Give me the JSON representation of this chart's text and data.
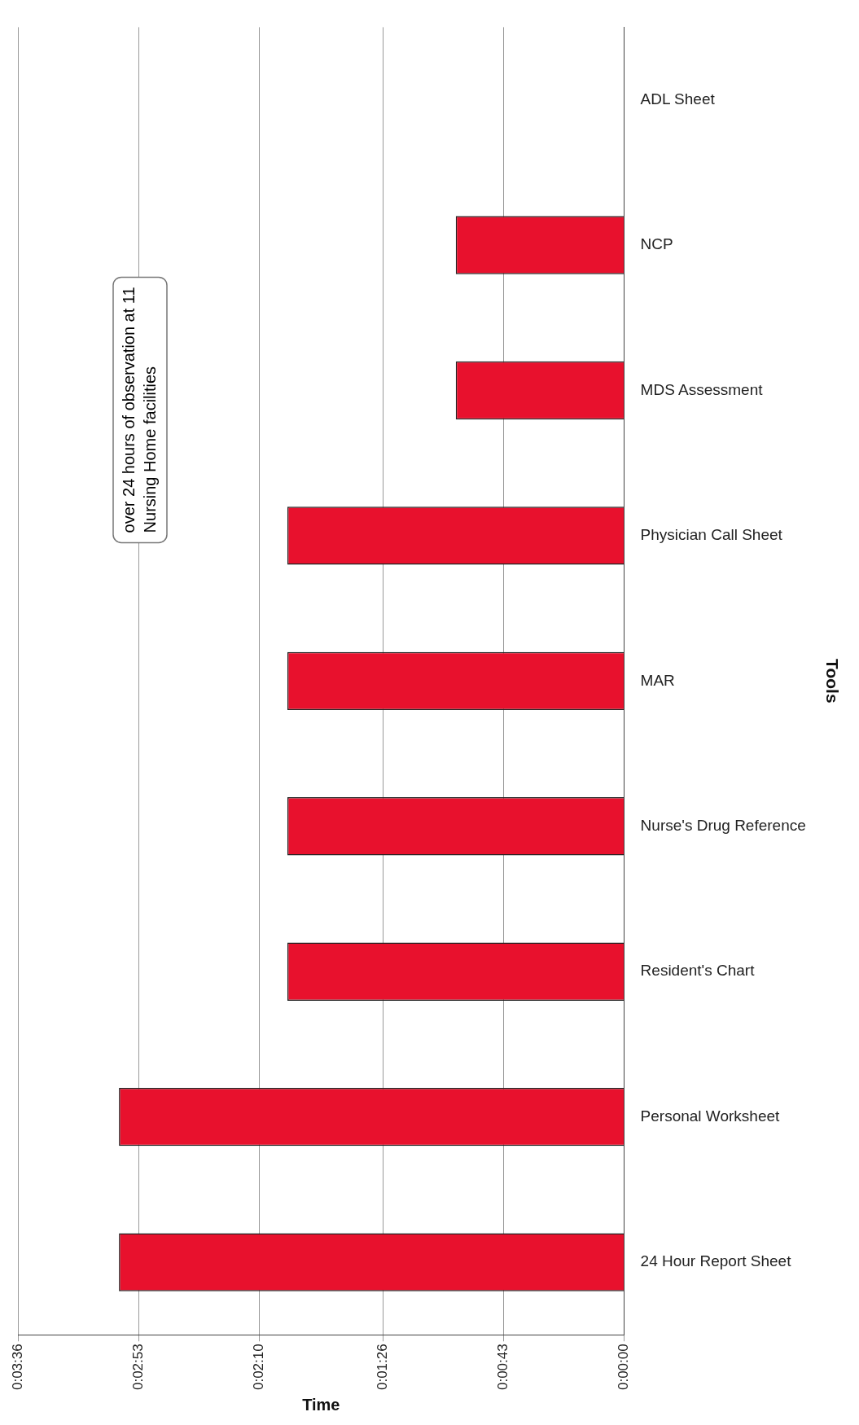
{
  "chart_data": {
    "type": "bar",
    "orientation": "horizontal",
    "xlabel": "Time",
    "ylabel": "Tools",
    "categories": [
      "ADL Sheet",
      "NCP",
      "MDS Assessment",
      "Physician Call Sheet",
      "MAR",
      "Nurse's Drug Reference",
      "Resident's Chart",
      "Personal Worksheet",
      "24 Hour Report Sheet"
    ],
    "values": [
      0,
      60,
      60,
      120,
      120,
      120,
      120,
      180,
      180
    ],
    "color": "#e8112d",
    "xlim": [
      216,
      0
    ],
    "xticks": [
      {
        "value": 216,
        "label": "0:03:36"
      },
      {
        "value": 173,
        "label": "0:02:53"
      },
      {
        "value": 130,
        "label": "0:02:10"
      },
      {
        "value": 86,
        "label": "0:01:26"
      },
      {
        "value": 43,
        "label": "0:00:43"
      },
      {
        "value": 0,
        "label": "0:00:00"
      }
    ],
    "grid": "x",
    "annotations": [
      "over 24 hours of observation at 11 Nursing Home facilities"
    ]
  }
}
